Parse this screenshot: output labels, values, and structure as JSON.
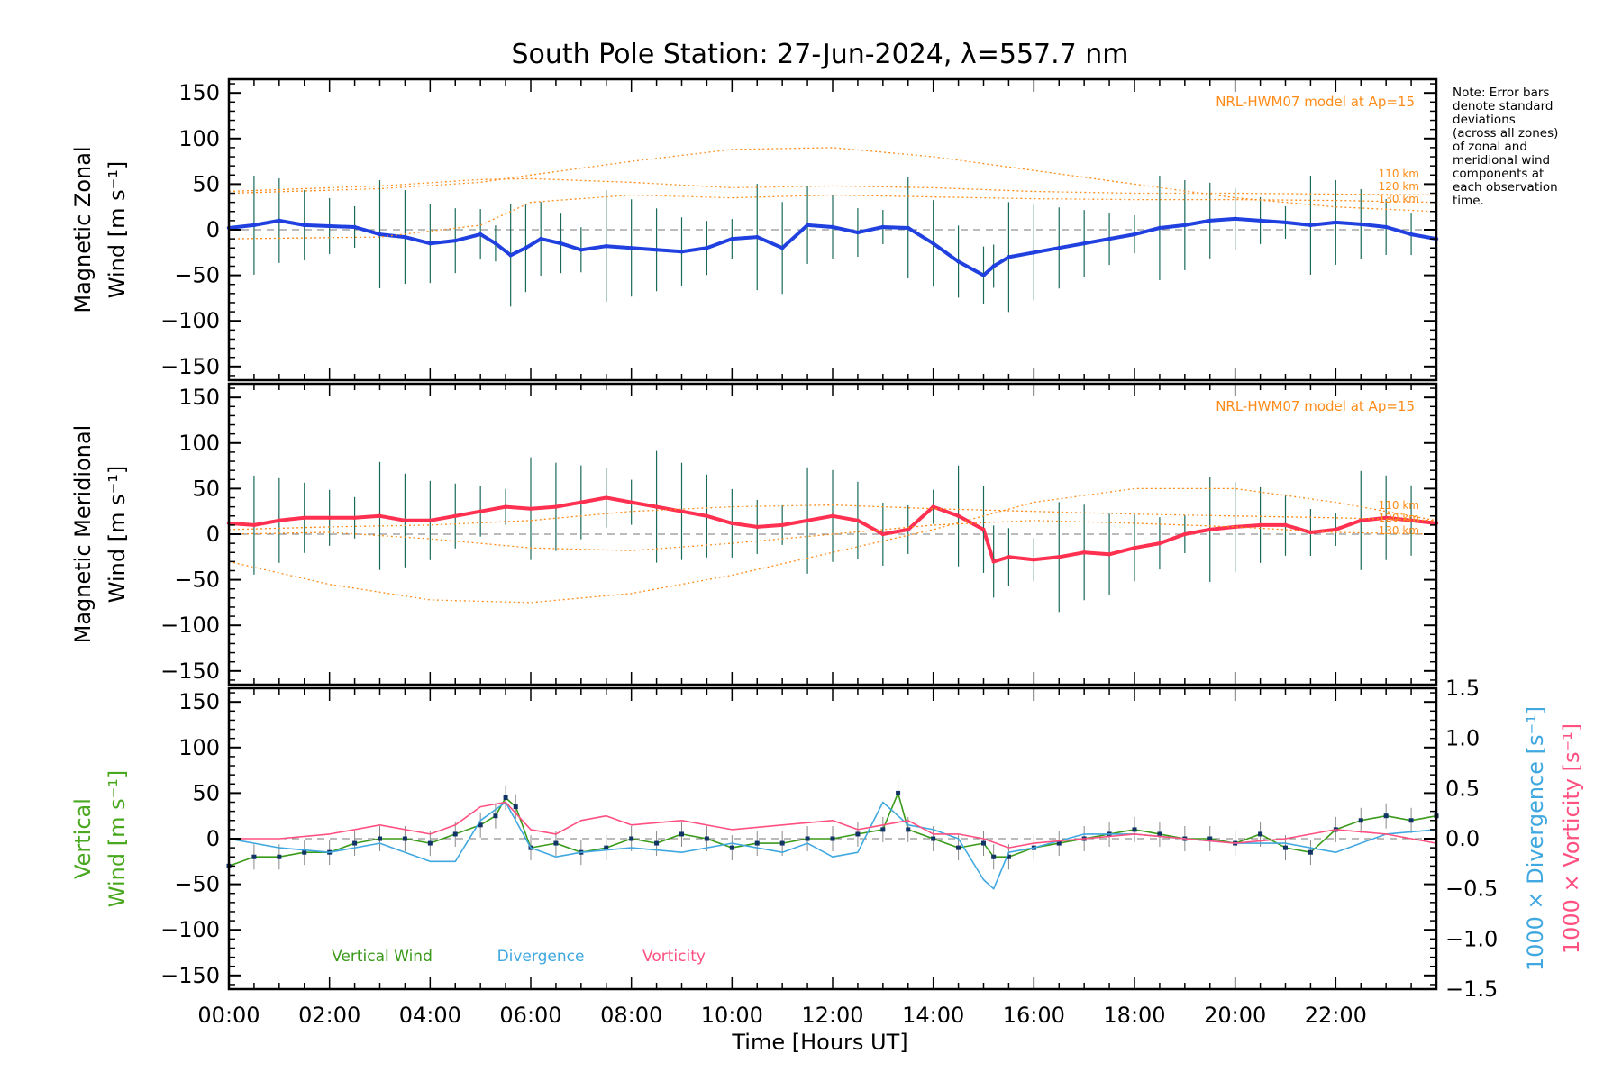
{
  "chart_data": {
    "title": "South Pole Station: 27-Jun-2024, λ=557.7 nm",
    "xlabel": "Time [Hours UT]",
    "xlim": [
      0,
      24
    ],
    "x_ticks": [
      "00:00",
      "02:00",
      "04:00",
      "06:00",
      "08:00",
      "10:00",
      "12:00",
      "14:00",
      "16:00",
      "18:00",
      "20:00",
      "22:00"
    ],
    "y_ticks": [
      "150",
      "100",
      "50",
      "0",
      "−50",
      "−100",
      "−150"
    ],
    "note": [
      "Note: Error bars",
      "denote standard",
      "deviations",
      "(across all zones)",
      "of zonal and",
      "meridional wind",
      "components at",
      "each observation",
      "time."
    ],
    "panels": [
      {
        "type": "line",
        "ylabel_line1": "Magnetic Zonal",
        "ylabel_line2": "Wind [m s⁻¹]",
        "ylim": [
          -165,
          165
        ],
        "model_label": "NRL-HWM07 model at Ap=15",
        "altitude_labels": [
          "110 km",
          "120 km",
          "130 km"
        ],
        "series": [
          {
            "name": "Zonal wind (mean)",
            "color": "#2040e0",
            "x": [
              0,
              0.5,
              1,
              1.5,
              2,
              2.5,
              3,
              3.5,
              4,
              4.5,
              5,
              5.3,
              5.6,
              5.9,
              6.2,
              6.6,
              7,
              7.5,
              8,
              8.5,
              9,
              9.5,
              10,
              10.5,
              11,
              11.5,
              12,
              12.5,
              13,
              13.5,
              14,
              14.5,
              15,
              15.2,
              15.5,
              16,
              16.5,
              17,
              17.5,
              18,
              18.5,
              19,
              19.5,
              20,
              20.5,
              21,
              21.5,
              22,
              22.5,
              23,
              23.5,
              24
            ],
            "y": [
              2,
              5,
              10,
              5,
              4,
              3,
              -5,
              -8,
              -15,
              -12,
              -5,
              -15,
              -28,
              -20,
              -10,
              -15,
              -22,
              -18,
              -20,
              -22,
              -24,
              -20,
              -10,
              -8,
              -20,
              5,
              3,
              -3,
              3,
              2,
              -15,
              -35,
              -50,
              -40,
              -30,
              -25,
              -20,
              -15,
              -10,
              -5,
              2,
              5,
              10,
              12,
              10,
              8,
              5,
              8,
              6,
              3,
              -5,
              -10
            ]
          },
          {
            "name": "Model 110 km",
            "color": "#ff8c1a",
            "x": [
              0,
              3,
              5,
              6,
              8,
              10,
              12,
              14,
              16,
              18,
              20,
              22,
              24
            ],
            "y": [
              40,
              45,
              52,
              60,
              75,
              88,
              90,
              80,
              65,
              50,
              35,
              25,
              20
            ]
          },
          {
            "name": "Model 120 km",
            "color": "#ff8c1a",
            "x": [
              0,
              3,
              5,
              6,
              8,
              10,
              12,
              14,
              16,
              18,
              20,
              22,
              24
            ],
            "y": [
              42,
              48,
              55,
              56,
              52,
              46,
              48,
              46,
              42,
              40,
              40,
              39,
              38
            ]
          },
          {
            "name": "Model 130 km",
            "color": "#ff8c1a",
            "x": [
              0,
              3,
              5,
              6,
              8,
              10,
              12,
              14,
              16,
              18,
              20,
              22,
              24
            ],
            "y": [
              -10,
              -8,
              5,
              30,
              38,
              35,
              38,
              36,
              34,
              33,
              33,
              32,
              30
            ]
          }
        ]
      },
      {
        "type": "line",
        "ylabel_line1": "Magnetic Meridional",
        "ylabel_line2": "Wind [m s⁻¹]",
        "ylim": [
          -165,
          165
        ],
        "model_label": "NRL-HWM07 model at Ap=15",
        "altitude_labels": [
          "110 km",
          "120 km",
          "130 km"
        ],
        "series": [
          {
            "name": "Meridional wind (mean)",
            "color": "#ff3050",
            "x": [
              0,
              0.5,
              1,
              1.5,
              2,
              2.5,
              3,
              3.5,
              4,
              4.5,
              5,
              5.5,
              6,
              6.5,
              7,
              7.5,
              8,
              8.5,
              9,
              9.5,
              10,
              10.5,
              11,
              11.5,
              12,
              12.5,
              13,
              13.5,
              14,
              14.5,
              15,
              15.2,
              15.5,
              16,
              16.5,
              17,
              17.5,
              18,
              18.5,
              19,
              19.5,
              20,
              20.5,
              21,
              21.5,
              22,
              22.5,
              23,
              23.5,
              24
            ],
            "y": [
              12,
              10,
              15,
              18,
              18,
              18,
              20,
              15,
              15,
              20,
              25,
              30,
              28,
              30,
              35,
              40,
              35,
              30,
              25,
              20,
              12,
              8,
              10,
              15,
              20,
              15,
              0,
              5,
              30,
              20,
              5,
              -30,
              -25,
              -28,
              -25,
              -20,
              -22,
              -15,
              -10,
              0,
              5,
              8,
              10,
              10,
              2,
              5,
              15,
              18,
              15,
              12
            ]
          },
          {
            "name": "Model 110 km",
            "color": "#ff8c1a",
            "x": [
              0,
              2,
              4,
              6,
              8,
              10,
              12,
              14,
              16,
              18,
              20,
              22,
              24
            ],
            "y": [
              -30,
              -55,
              -72,
              -75,
              -65,
              -45,
              -20,
              5,
              35,
              50,
              50,
              35,
              15
            ]
          },
          {
            "name": "Model 120 km",
            "color": "#ff8c1a",
            "x": [
              0,
              2,
              4,
              6,
              8,
              10,
              12,
              14,
              16,
              18,
              20,
              22,
              24
            ],
            "y": [
              5,
              8,
              10,
              15,
              25,
              30,
              32,
              28,
              25,
              22,
              20,
              18,
              15
            ]
          },
          {
            "name": "Model 130 km",
            "color": "#ff8c1a",
            "x": [
              0,
              2,
              4,
              6,
              8,
              10,
              12,
              14,
              16,
              18,
              20,
              22,
              24
            ],
            "y": [
              0,
              2,
              -5,
              -15,
              -18,
              -10,
              0,
              10,
              15,
              12,
              8,
              2,
              0
            ]
          }
        ]
      },
      {
        "type": "line",
        "ylabel_line1": "Vertical",
        "ylabel_line2": "Wind [m s⁻¹]",
        "ylim": [
          -165,
          165
        ],
        "y2_ticks": [
          "1.5",
          "1.0",
          "0.5",
          "0.0",
          "−0.5",
          "−1.0",
          "−1.5"
        ],
        "y2lim": [
          -1.5,
          1.5
        ],
        "y2label_div": "1000 × Divergence [s⁻¹]",
        "y2label_vort": "1000 × Vorticity [s⁻¹]",
        "legend": [
          "Vertical Wind",
          "Divergence",
          "Vorticity"
        ],
        "series": [
          {
            "name": "Vertical Wind",
            "color": "#3a9a1a",
            "x": [
              0,
              0.5,
              1,
              1.5,
              2,
              2.5,
              3,
              3.5,
              4,
              4.5,
              5,
              5.3,
              5.5,
              5.7,
              6,
              6.5,
              7,
              7.5,
              8,
              8.5,
              9,
              9.5,
              10,
              10.5,
              11,
              11.5,
              12,
              12.5,
              13,
              13.3,
              13.5,
              14,
              14.5,
              15,
              15.2,
              15.5,
              16,
              16.5,
              17,
              17.5,
              18,
              18.5,
              19,
              19.5,
              20,
              20.5,
              21,
              21.5,
              22,
              22.5,
              23,
              23.5,
              24
            ],
            "y": [
              -30,
              -20,
              -20,
              -15,
              -15,
              -5,
              0,
              0,
              -5,
              5,
              15,
              25,
              45,
              35,
              -10,
              -5,
              -15,
              -10,
              0,
              -5,
              5,
              0,
              -10,
              -5,
              -5,
              0,
              0,
              5,
              10,
              50,
              10,
              0,
              -10,
              -5,
              -20,
              -20,
              -10,
              -5,
              0,
              5,
              10,
              5,
              0,
              0,
              -5,
              5,
              -10,
              -15,
              10,
              20,
              25,
              20,
              25
            ]
          },
          {
            "name": "Divergence",
            "color": "#40a8e0",
            "x": [
              0,
              1,
              2,
              3,
              4,
              4.5,
              5,
              5.5,
              6,
              6.5,
              7,
              8,
              9,
              10,
              11,
              11.5,
              12,
              12.5,
              13,
              13.5,
              14,
              14.5,
              15,
              15.2,
              15.5,
              16,
              17,
              18,
              19,
              20,
              21,
              22,
              23,
              24
            ],
            "y": [
              0,
              -10,
              -15,
              -5,
              -25,
              -25,
              20,
              40,
              -10,
              -20,
              -15,
              -10,
              -15,
              -5,
              -15,
              -5,
              -20,
              -15,
              40,
              15,
              10,
              0,
              -45,
              -55,
              -15,
              -10,
              5,
              5,
              0,
              -5,
              -5,
              -15,
              5,
              10
            ]
          },
          {
            "name": "Vorticity",
            "color": "#ff5080",
            "x": [
              0,
              1,
              2,
              3,
              4,
              4.5,
              5,
              5.5,
              6,
              6.5,
              7,
              7.5,
              8,
              9,
              10,
              11,
              12,
              12.5,
              13,
              13.5,
              14,
              14.5,
              15,
              15.5,
              16,
              17,
              18,
              19,
              20,
              21,
              22,
              23,
              24
            ],
            "y": [
              0,
              0,
              5,
              15,
              5,
              15,
              35,
              40,
              10,
              5,
              20,
              25,
              15,
              20,
              10,
              15,
              20,
              10,
              15,
              20,
              5,
              5,
              0,
              -10,
              -5,
              0,
              5,
              0,
              -5,
              0,
              10,
              5,
              -5
            ]
          }
        ]
      }
    ]
  }
}
